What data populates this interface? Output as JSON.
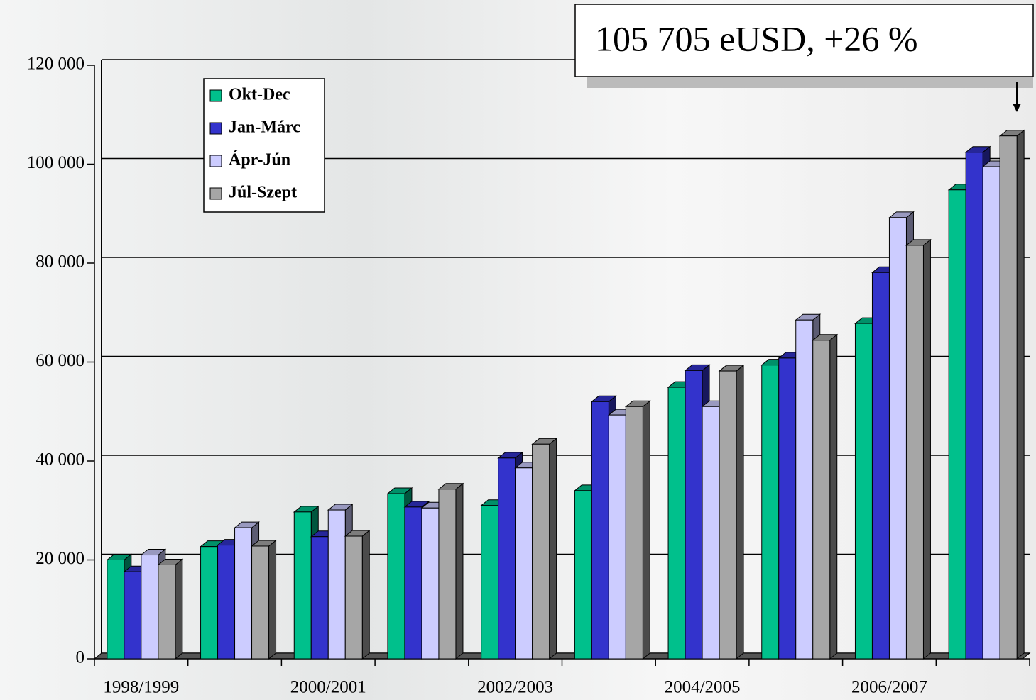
{
  "chart_data": {
    "type": "bar",
    "annotation": "105 705 eUSD,   +26 %",
    "categories": [
      "1998/1999",
      null,
      "2000/2001",
      null,
      "2002/2003",
      null,
      "2004/2005",
      null,
      "2006/2007",
      null
    ],
    "series": [
      {
        "name": "Okt-Dec",
        "color": "#00c08c",
        "values": [
          20000,
          22700,
          29700,
          33400,
          31000,
          34000,
          54900,
          59400,
          67800,
          94800
        ]
      },
      {
        "name": "Jan-Márc",
        "color": "#3333cc",
        "values": [
          17600,
          23000,
          24700,
          30700,
          40600,
          52000,
          58300,
          60800,
          78100,
          102400
        ]
      },
      {
        "name": "Ápr-Jún",
        "color": "#ccccff",
        "values": [
          21000,
          26500,
          30100,
          30500,
          38600,
          49300,
          51000,
          68500,
          89200,
          99500
        ]
      },
      {
        "name": "Júl-Szept",
        "color": "#a6a6a6",
        "values": [
          19000,
          22800,
          24800,
          34300,
          43400,
          51000,
          58200,
          64400,
          83600,
          105705
        ]
      }
    ],
    "ylim": [
      0,
      120000
    ],
    "yticks": [
      0,
      {
        "value": 20000,
        "label": "20 000"
      },
      {
        "value": 40000,
        "label": "40 000"
      },
      {
        "value": 60000,
        "label": "60 000"
      },
      {
        "value": 80000,
        "label": "80 000"
      },
      {
        "value": 100000,
        "label": "100 000"
      },
      {
        "value": 120000,
        "label": "120 000"
      }
    ],
    "grid": true,
    "legend": "top-left"
  }
}
